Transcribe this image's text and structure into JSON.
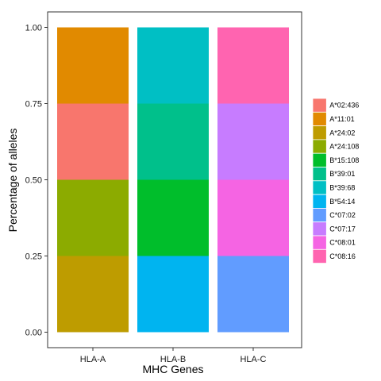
{
  "chart_data": {
    "type": "bar",
    "stacked": true,
    "title": "",
    "xlabel": "MHC Genes",
    "ylabel": "Percentage of alleles",
    "categories": [
      "HLA-A",
      "HLA-B",
      "HLA-C"
    ],
    "ylim": [
      0,
      1
    ],
    "yticks": [
      "0.00",
      "0.25",
      "0.50",
      "0.75",
      "1.00"
    ],
    "ytick_values": [
      0,
      0.25,
      0.5,
      0.75,
      1.0
    ],
    "grid": false,
    "legend_position": "right",
    "series": [
      {
        "name": "A*02:436",
        "color": "#F8766D",
        "values": [
          0.25,
          0,
          0
        ]
      },
      {
        "name": "A*11:01",
        "color": "#E18A00",
        "values": [
          0.25,
          0,
          0
        ]
      },
      {
        "name": "A*24:02",
        "color": "#BE9C00",
        "values": [
          0.25,
          0,
          0
        ]
      },
      {
        "name": "A*24:108",
        "color": "#8CAB00",
        "values": [
          0.25,
          0,
          0
        ]
      },
      {
        "name": "B*15:108",
        "color": "#00BE2B",
        "values": [
          0,
          0.25,
          0
        ]
      },
      {
        "name": "B*39:01",
        "color": "#00C08B",
        "values": [
          0,
          0.25,
          0
        ]
      },
      {
        "name": "B*39:68",
        "color": "#00BFC4",
        "values": [
          0,
          0.25,
          0
        ]
      },
      {
        "name": "B*54:14",
        "color": "#00B4F0",
        "values": [
          0,
          0.25,
          0
        ]
      },
      {
        "name": "C*07:02",
        "color": "#619CFF",
        "values": [
          0,
          0,
          0.25
        ]
      },
      {
        "name": "C*07:17",
        "color": "#C77CFF",
        "values": [
          0,
          0,
          0.25
        ]
      },
      {
        "name": "C*08:01",
        "color": "#F564E3",
        "values": [
          0,
          0,
          0.25
        ]
      },
      {
        "name": "C*08:16",
        "color": "#FF64B0",
        "values": [
          0,
          0,
          0.25
        ]
      }
    ],
    "stack_order": [
      [
        "A*24:02",
        "A*24:108",
        "A*02:436",
        "A*11:01"
      ],
      [
        "B*54:14",
        "B*15:108",
        "B*39:01",
        "B*39:68"
      ],
      [
        "C*07:02",
        "C*08:01",
        "C*07:17",
        "C*08:16"
      ]
    ]
  }
}
